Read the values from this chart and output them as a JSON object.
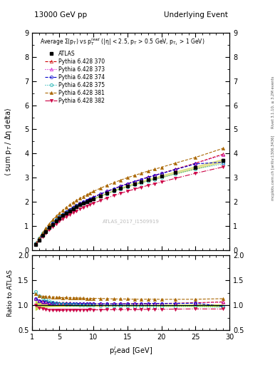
{
  "title_left": "13000 GeV pp",
  "title_right": "Underlying Event",
  "watermark": "ATLAS_2017_I1509919",
  "ylabel_main": "⟨ sum p_T / Δη delta⟩",
  "ylabel_ratio": "Ratio to ATLAS",
  "xlabel": "p$_T^l$ead [GeV]",
  "right_label": "Rivet 3.1.10, ≥ 3.2M events",
  "right_label2": "mcplots.cern.ch [arXiv:1306.3436]",
  "xlim": [
    1,
    30
  ],
  "ylim_main": [
    0,
    9
  ],
  "ylim_ratio": [
    0.5,
    2
  ],
  "x_atlas": [
    1.5,
    2.0,
    2.5,
    3.0,
    3.5,
    4.0,
    4.5,
    5.0,
    5.5,
    6.0,
    6.5,
    7.0,
    7.5,
    8.0,
    8.5,
    9.0,
    9.5,
    10.0,
    11.0,
    12.0,
    13.0,
    14.0,
    15.0,
    16.0,
    17.0,
    18.0,
    19.0,
    20.0,
    22.0,
    25.0,
    29.0
  ],
  "y_atlas": [
    0.22,
    0.42,
    0.6,
    0.77,
    0.93,
    1.07,
    1.2,
    1.32,
    1.43,
    1.53,
    1.62,
    1.71,
    1.79,
    1.87,
    1.94,
    2.01,
    2.07,
    2.13,
    2.25,
    2.36,
    2.47,
    2.57,
    2.66,
    2.75,
    2.83,
    2.91,
    2.98,
    3.06,
    3.21,
    3.42,
    3.71
  ],
  "y_atlas_err": [
    0.02,
    0.02,
    0.02,
    0.02,
    0.02,
    0.02,
    0.02,
    0.02,
    0.02,
    0.02,
    0.02,
    0.02,
    0.02,
    0.02,
    0.02,
    0.02,
    0.02,
    0.02,
    0.02,
    0.02,
    0.02,
    0.02,
    0.03,
    0.03,
    0.03,
    0.03,
    0.03,
    0.04,
    0.04,
    0.05,
    0.06
  ],
  "series": [
    {
      "label": "Pythia 6.428 370",
      "color": "#cc0000",
      "marker": "^",
      "linestyle": "--",
      "x": [
        1.5,
        2.0,
        2.5,
        3.0,
        3.5,
        4.0,
        4.5,
        5.0,
        5.5,
        6.0,
        6.5,
        7.0,
        7.5,
        8.0,
        8.5,
        9.0,
        9.5,
        10.0,
        11.0,
        12.0,
        13.0,
        14.0,
        15.0,
        16.0,
        17.0,
        18.0,
        19.0,
        20.0,
        22.0,
        25.0,
        29.0
      ],
      "y": [
        0.25,
        0.46,
        0.65,
        0.83,
        0.99,
        1.13,
        1.26,
        1.38,
        1.49,
        1.6,
        1.69,
        1.78,
        1.86,
        1.93,
        2.0,
        2.07,
        2.13,
        2.2,
        2.31,
        2.43,
        2.54,
        2.65,
        2.75,
        2.84,
        2.93,
        3.02,
        3.1,
        3.18,
        3.35,
        3.6,
        3.97
      ],
      "mfc": "none"
    },
    {
      "label": "Pythia 6.428 373",
      "color": "#cc00cc",
      "marker": "^",
      "linestyle": ":",
      "x": [
        1.5,
        2.0,
        2.5,
        3.0,
        3.5,
        4.0,
        4.5,
        5.0,
        5.5,
        6.0,
        6.5,
        7.0,
        7.5,
        8.0,
        8.5,
        9.0,
        9.5,
        10.0,
        11.0,
        12.0,
        13.0,
        14.0,
        15.0,
        16.0,
        17.0,
        18.0,
        19.0,
        20.0,
        22.0,
        25.0,
        29.0
      ],
      "y": [
        0.25,
        0.46,
        0.64,
        0.82,
        0.98,
        1.12,
        1.25,
        1.37,
        1.48,
        1.58,
        1.68,
        1.77,
        1.85,
        1.93,
        2.0,
        2.07,
        2.13,
        2.19,
        2.32,
        2.43,
        2.54,
        2.65,
        2.75,
        2.84,
        2.93,
        3.02,
        3.1,
        3.18,
        3.34,
        3.59,
        3.94
      ],
      "mfc": "none"
    },
    {
      "label": "Pythia 6.428 374",
      "color": "#0000cc",
      "marker": "o",
      "linestyle": "--",
      "x": [
        1.5,
        2.0,
        2.5,
        3.0,
        3.5,
        4.0,
        4.5,
        5.0,
        5.5,
        6.0,
        6.5,
        7.0,
        7.5,
        8.0,
        8.5,
        9.0,
        9.5,
        10.0,
        11.0,
        12.0,
        13.0,
        14.0,
        15.0,
        16.0,
        17.0,
        18.0,
        19.0,
        20.0,
        22.0,
        25.0,
        29.0
      ],
      "y": [
        0.25,
        0.46,
        0.65,
        0.83,
        0.98,
        1.12,
        1.25,
        1.37,
        1.48,
        1.58,
        1.68,
        1.77,
        1.85,
        1.93,
        2.0,
        2.07,
        2.13,
        2.19,
        2.32,
        2.43,
        2.54,
        2.64,
        2.74,
        2.83,
        2.92,
        3.01,
        3.09,
        3.17,
        3.33,
        3.57,
        3.64
      ],
      "mfc": "none"
    },
    {
      "label": "Pythia 6.428 375",
      "color": "#00aaaa",
      "marker": "o",
      "linestyle": ":",
      "x": [
        1.5,
        2.0,
        2.5,
        3.0,
        3.5,
        4.0,
        4.5,
        5.0,
        5.5,
        6.0,
        6.5,
        7.0,
        7.5,
        8.0,
        8.5,
        9.0,
        9.5,
        10.0,
        11.0,
        12.0,
        13.0,
        14.0,
        15.0,
        16.0,
        17.0,
        18.0,
        19.0,
        20.0,
        22.0,
        25.0,
        29.0
      ],
      "y": [
        0.28,
        0.5,
        0.69,
        0.86,
        1.01,
        1.14,
        1.26,
        1.37,
        1.47,
        1.57,
        1.66,
        1.74,
        1.82,
        1.89,
        1.95,
        2.01,
        2.07,
        2.13,
        2.24,
        2.34,
        2.44,
        2.53,
        2.62,
        2.7,
        2.78,
        2.86,
        2.93,
        3.0,
        3.15,
        3.36,
        3.57
      ],
      "mfc": "none"
    },
    {
      "label": "Pythia 6.428 381",
      "color": "#aa6600",
      "marker": "^",
      "linestyle": "--",
      "x": [
        1.5,
        2.0,
        2.5,
        3.0,
        3.5,
        4.0,
        4.5,
        5.0,
        5.5,
        6.0,
        6.5,
        7.0,
        7.5,
        8.0,
        8.5,
        9.0,
        9.5,
        10.0,
        11.0,
        12.0,
        13.0,
        14.0,
        15.0,
        16.0,
        17.0,
        18.0,
        19.0,
        20.0,
        22.0,
        25.0,
        29.0
      ],
      "y": [
        0.27,
        0.5,
        0.71,
        0.91,
        1.09,
        1.25,
        1.4,
        1.53,
        1.65,
        1.77,
        1.87,
        1.97,
        2.06,
        2.14,
        2.22,
        2.29,
        2.36,
        2.43,
        2.56,
        2.68,
        2.79,
        2.9,
        3.0,
        3.09,
        3.18,
        3.27,
        3.35,
        3.43,
        3.6,
        3.84,
        4.21
      ],
      "mfc": "#aa6600"
    },
    {
      "label": "Pythia 6.428 382",
      "color": "#cc0044",
      "marker": "v",
      "linestyle": "-.",
      "x": [
        1.5,
        2.0,
        2.5,
        3.0,
        3.5,
        4.0,
        4.5,
        5.0,
        5.5,
        6.0,
        6.5,
        7.0,
        7.5,
        8.0,
        8.5,
        9.0,
        9.5,
        10.0,
        11.0,
        12.0,
        13.0,
        14.0,
        15.0,
        16.0,
        17.0,
        18.0,
        19.0,
        20.0,
        22.0,
        25.0,
        29.0
      ],
      "y": [
        0.22,
        0.4,
        0.56,
        0.71,
        0.84,
        0.97,
        1.09,
        1.19,
        1.29,
        1.38,
        1.47,
        1.55,
        1.63,
        1.7,
        1.76,
        1.83,
        1.89,
        1.94,
        2.05,
        2.16,
        2.26,
        2.35,
        2.44,
        2.52,
        2.6,
        2.68,
        2.75,
        2.82,
        2.97,
        3.18,
        3.44
      ],
      "mfc": "#cc0044"
    }
  ]
}
